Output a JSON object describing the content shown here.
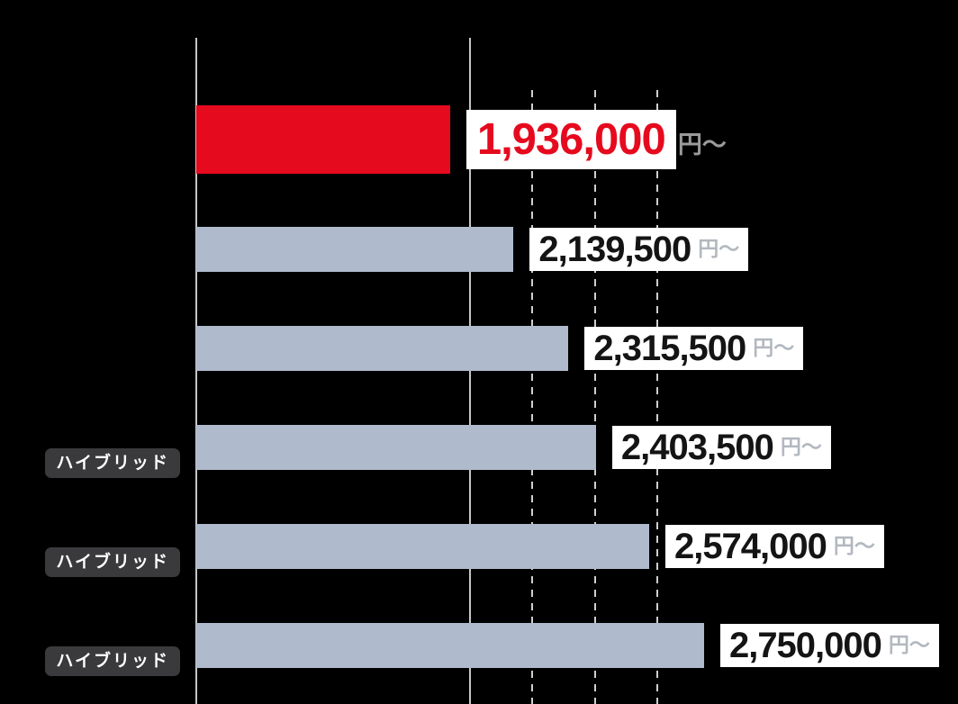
{
  "chart_data": {
    "type": "bar",
    "orientation": "horizontal",
    "title": "",
    "unit_suffix": "円～",
    "rows": [
      {
        "price_label": "1,936,000",
        "value": 1936000,
        "badge": "",
        "highlight": true
      },
      {
        "price_label": "2,139,500",
        "value": 2139500,
        "badge": "",
        "highlight": false
      },
      {
        "price_label": "2,315,500",
        "value": 2315500,
        "badge": "",
        "highlight": false
      },
      {
        "price_label": "2,403,500",
        "value": 2403500,
        "badge": "ハイブリッド",
        "highlight": false
      },
      {
        "price_label": "2,574,000",
        "value": 2574000,
        "badge": "ハイブリッド",
        "highlight": false
      },
      {
        "price_label": "2,750,000",
        "value": 2750000,
        "badge": "ハイブリッド",
        "highlight": false
      }
    ],
    "axis": {
      "tick_labels_visible": false,
      "gridlines_solid_values": [
        2000000
      ],
      "gridlines_dashed_values": [
        2200000,
        2400000,
        2600000
      ],
      "left_edge_value_estimate": 1123000
    },
    "legend": null,
    "colors": {
      "background": "#000000",
      "highlight_bar": "#e60a1e",
      "bar": "#afbacc",
      "label_box_bg": "#ffffff",
      "highlight_number_text": "#e60a1e",
      "number_text": "#141414",
      "unit_text_on_white": "#b3b8bf",
      "unit_text_on_black": "#9a9a9a",
      "badge_bg": "#3a3a3c",
      "badge_text": "#ffffff",
      "gridline": "#c9c9c9"
    }
  }
}
